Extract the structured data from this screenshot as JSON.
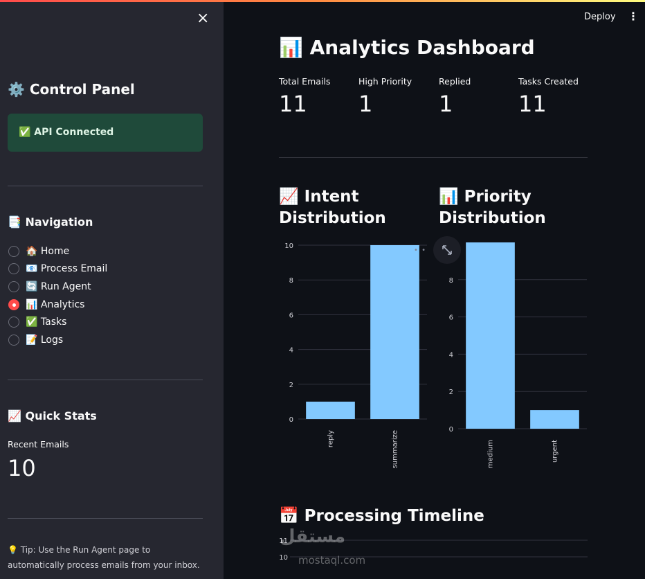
{
  "sidebar": {
    "close_glyph": "×",
    "title": "⚙️ Control Panel",
    "api_status": "✅ API Connected",
    "nav_heading": "📑 Navigation",
    "nav_items": [
      {
        "label": "🏠 Home",
        "selected": false
      },
      {
        "label": "📧 Process Email",
        "selected": false
      },
      {
        "label": "🔄 Run Agent",
        "selected": false
      },
      {
        "label": "📊 Analytics",
        "selected": true
      },
      {
        "label": "✅ Tasks",
        "selected": false
      },
      {
        "label": "📝 Logs",
        "selected": false
      }
    ],
    "quick_stats_heading": "📈 Quick Stats",
    "recent_emails_label": "Recent Emails",
    "recent_emails_value": "10",
    "tip": "💡 Tip: Use the Run Agent page to automatically process emails from your inbox."
  },
  "header": {
    "deploy_label": "Deploy",
    "menu_glyph": "⋮"
  },
  "main": {
    "title": "📊 Analytics Dashboard",
    "metrics": [
      {
        "label": "Total Emails",
        "value": "11"
      },
      {
        "label": "High Priority",
        "value": "1"
      },
      {
        "label": "Replied",
        "value": "1"
      },
      {
        "label": "Tasks Created",
        "value": "11"
      }
    ],
    "intent_title_1": "📈 Intent",
    "intent_title_2": "Distribution",
    "priority_title_1": "📊 Priority",
    "priority_title_2": "Distribution",
    "timeline_title": "📅 Processing Timeline",
    "watermark": "مستقل",
    "watermark_sub": "mostaql.com"
  },
  "chart_data": [
    {
      "type": "bar",
      "title": "📈 Intent Distribution",
      "categories": [
        "reply",
        "summarize"
      ],
      "values": [
        1,
        10
      ],
      "ylim": [
        0,
        10
      ],
      "yticks": [
        0,
        2,
        4,
        6,
        8,
        10
      ],
      "color": "#83c9ff"
    },
    {
      "type": "bar",
      "title": "📊 Priority Distribution",
      "categories": [
        "medium",
        "urgent"
      ],
      "values": [
        10,
        1
      ],
      "ylim": [
        0,
        10
      ],
      "yticks": [
        0,
        2,
        4,
        6,
        8
      ],
      "color": "#83c9ff"
    },
    {
      "type": "line",
      "title": "📅 Processing Timeline",
      "yticks": [
        10,
        11
      ]
    }
  ]
}
